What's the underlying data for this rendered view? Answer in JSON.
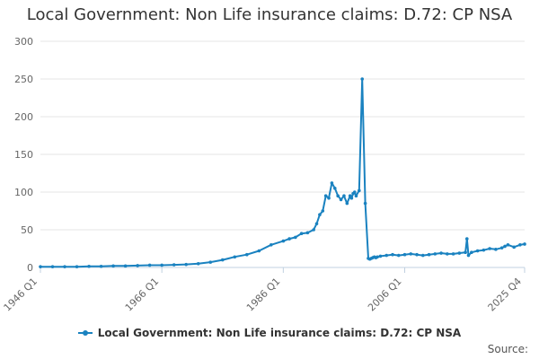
{
  "colors": {
    "series": "#1a82c0",
    "grid": "#e6e6e6",
    "axis": "#c0d0e0",
    "text": "#666666"
  },
  "source_label": "Source:",
  "chart_data": {
    "type": "line",
    "title": "Local Government: Non Life insurance claims: D.72: CP NSA",
    "xlabel": "",
    "ylabel": "",
    "ylim": [
      0,
      300
    ],
    "yticks": [
      0,
      50,
      100,
      150,
      200,
      250,
      300
    ],
    "xlim": [
      "1946 Q1",
      "2025 Q4"
    ],
    "xtick_labels": [
      "1946 Q1",
      "1966 Q1",
      "1986 Q1",
      "2006 Q1",
      "2025 Q4"
    ],
    "grid": true,
    "legend": "bottom",
    "series": [
      {
        "name": "Local Government: Non Life insurance claims: D.72: CP NSA",
        "x": [
          "1946 Q1",
          "1948 Q1",
          "1950 Q1",
          "1952 Q1",
          "1954 Q1",
          "1956 Q1",
          "1958 Q1",
          "1960 Q1",
          "1962 Q1",
          "1964 Q1",
          "1966 Q1",
          "1968 Q1",
          "1970 Q1",
          "1972 Q1",
          "1974 Q1",
          "1976 Q1",
          "1978 Q1",
          "1980 Q1",
          "1982 Q1",
          "1984 Q1",
          "1986 Q1",
          "1987 Q1",
          "1988 Q1",
          "1989 Q1",
          "1990 Q1",
          "1991 Q1",
          "1991 Q3",
          "1992 Q1",
          "1992 Q3",
          "1993 Q1",
          "1993 Q3",
          "1994 Q1",
          "1994 Q3",
          "1995 Q1",
          "1995 Q3",
          "1996 Q1",
          "1996 Q3",
          "1997 Q1",
          "1997 Q2",
          "1997 Q3",
          "1997 Q4",
          "1998 Q1",
          "1998 Q3",
          "1999 Q1",
          "1999 Q3",
          "2000 Q1",
          "2000 Q2",
          "2000 Q3",
          "2000 Q4",
          "2001 Q1",
          "2001 Q2",
          "2001 Q3",
          "2002 Q1",
          "2003 Q1",
          "2004 Q1",
          "2005 Q1",
          "2006 Q1",
          "2007 Q1",
          "2008 Q1",
          "2009 Q1",
          "2010 Q1",
          "2011 Q1",
          "2012 Q1",
          "2013 Q1",
          "2014 Q1",
          "2015 Q1",
          "2016 Q1",
          "2016 Q2",
          "2016 Q3",
          "2017 Q1",
          "2018 Q1",
          "2019 Q1",
          "2020 Q1",
          "2021 Q1",
          "2022 Q1",
          "2022 Q3",
          "2023 Q1",
          "2024 Q1",
          "2025 Q1",
          "2025 Q4"
        ],
        "values": [
          1,
          1,
          1,
          1,
          1.5,
          1.5,
          2,
          2,
          2.5,
          3,
          3,
          3.5,
          4,
          5,
          7,
          10,
          14,
          17,
          22,
          30,
          35,
          38,
          40,
          45,
          46,
          50,
          58,
          70,
          75,
          95,
          92,
          112,
          105,
          95,
          90,
          95,
          85,
          95,
          92,
          98,
          100,
          95,
          102,
          250,
          85,
          12,
          11,
          12,
          13,
          14,
          13,
          14,
          15,
          16,
          17,
          16,
          17,
          18,
          17,
          16,
          17,
          18,
          19,
          18,
          18,
          19,
          20,
          38,
          16,
          20,
          22,
          23,
          25,
          24,
          26,
          28,
          30,
          27,
          30,
          31
        ]
      }
    ]
  }
}
